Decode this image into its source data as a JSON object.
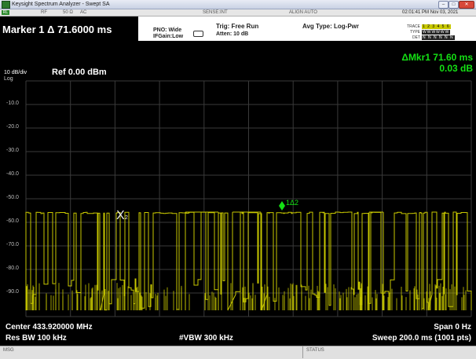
{
  "window": {
    "title": "Keysight Spectrum Analyzer - Swept SA",
    "min_glyph": "–",
    "max_glyph": "□",
    "close_glyph": "✕"
  },
  "status_strip": {
    "mode_icon": "RL",
    "items": [
      "RF",
      "50 Ω",
      "AC"
    ],
    "sense": "SENSE:INT",
    "align": "ALIGN AUTO",
    "datetime": "02:01:41 PM Nov 03, 2021"
  },
  "marker": {
    "readout": "Marker 1 Δ 71.6000 ms",
    "delta_label": "ΔMkr1 71.60 ms",
    "delta_value": "0.03 dB",
    "x_label": "X",
    "x_sub": "2",
    "ref_marker_label": "1Δ2"
  },
  "settings": {
    "pno": "PNO: Wide",
    "ifgain": "IFGain:Low",
    "trig": "Trig: Free Run",
    "atten": "Atten: 10 dB",
    "avg_type": "Avg Type: Log-Pwr",
    "trace_label": "TRACE",
    "trace_value": "1 2 3 4 5 6",
    "type_label": "TYPE",
    "type_value": "WWWWWW",
    "det_label": "DET",
    "det_value": "N N N N N N"
  },
  "display": {
    "scale": "10 dB/div",
    "log": "Log",
    "ref_level": "Ref 0.00 dBm",
    "y_ticks": [
      "-10.0",
      "-20.0",
      "-30.0",
      "-40.0",
      "-50.0",
      "-60.0",
      "-70.0",
      "-80.0",
      "-90.0"
    ]
  },
  "bottom": {
    "center": "Center 433.920000 MHz",
    "res_bw": "Res BW 100 kHz",
    "vbw": "#VBW 300 kHz",
    "span": "Span 0 Hz",
    "sweep": "Sweep  200.0 ms (1001 pts)"
  },
  "statusbar": {
    "msg": "MSG",
    "status": "STATUS"
  },
  "colors": {
    "trace": "#c8c800",
    "grid": "#3a3a3a",
    "marker": "#14e014",
    "background": "#000000"
  }
}
